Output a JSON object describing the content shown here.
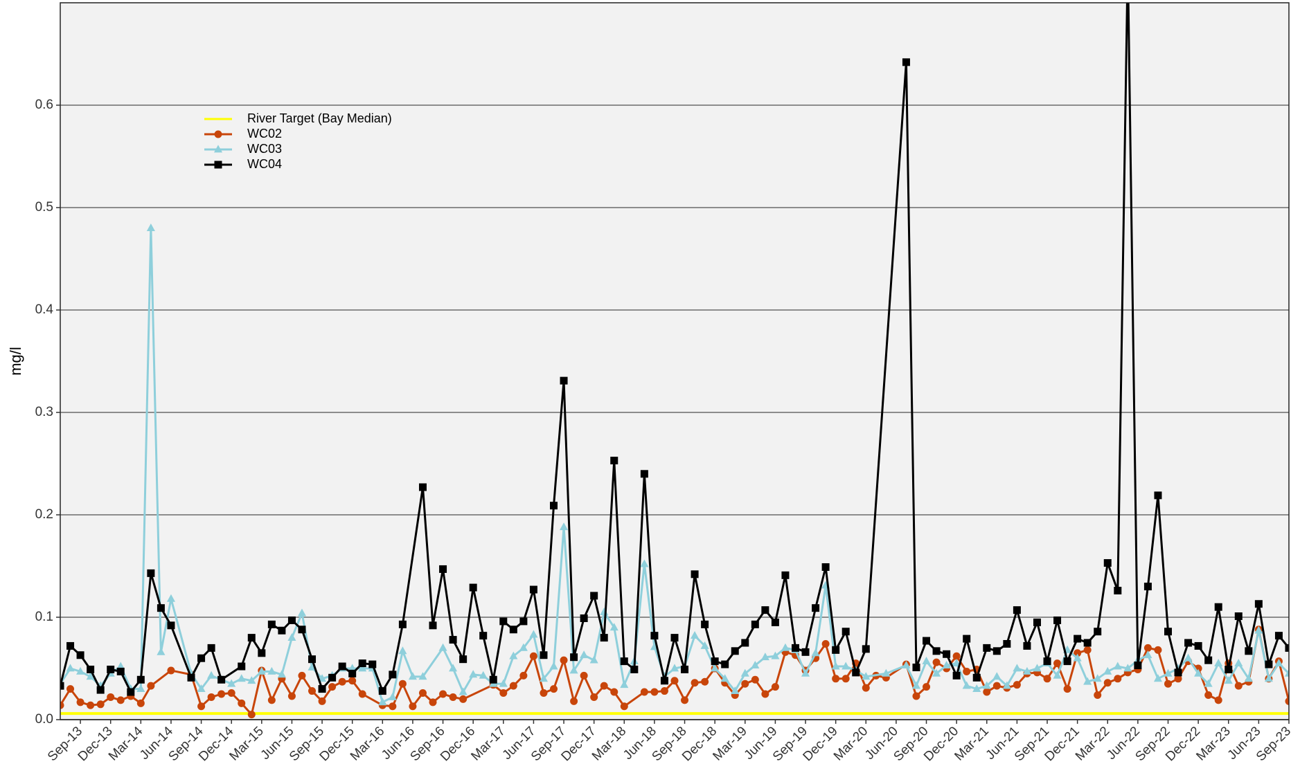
{
  "chart_data": {
    "type": "line",
    "ylabel": "mg/l",
    "xlim": [
      "2013-07",
      "2023-09"
    ],
    "ylim": [
      0,
      0.7
    ],
    "yticks": [
      {
        "value": 0,
        "label": "0.0"
      },
      0.1,
      0.2,
      0.3,
      0.4,
      0.5,
      0.6
    ],
    "grid": true,
    "legend": "upper left",
    "xticks": [
      {
        "value": "2013-09",
        "label": "Sep-13"
      },
      {
        "value": "2013-12",
        "label": "Dec-13"
      },
      {
        "value": "2014-03",
        "label": "Mar-14"
      },
      {
        "value": "2014-06",
        "label": "Jun-14"
      },
      {
        "value": "2014-09",
        "label": "Sep-14"
      },
      {
        "value": "2014-12",
        "label": "Dec-14"
      },
      {
        "value": "2015-03",
        "label": "Mar-15"
      },
      {
        "value": "2015-06",
        "label": "Jun-15"
      },
      {
        "value": "2015-09",
        "label": "Sep-15"
      },
      {
        "value": "2015-12",
        "label": "Dec-15"
      },
      {
        "value": "2016-03",
        "label": "Mar-16"
      },
      {
        "value": "2016-06",
        "label": "Jun-16"
      },
      {
        "value": "2016-09",
        "label": "Sep-16"
      },
      {
        "value": "2016-12",
        "label": "Dec-16"
      },
      {
        "value": "2017-03",
        "label": "Mar-17"
      },
      {
        "value": "2017-06",
        "label": "Jun-17"
      },
      {
        "value": "2017-09",
        "label": "Sep-17"
      },
      {
        "value": "2017-12",
        "label": "Dec-17"
      },
      {
        "value": "2018-03",
        "label": "Mar-18"
      },
      {
        "value": "2018-06",
        "label": "Jun-18"
      },
      {
        "value": "2018-09",
        "label": "Sep-18"
      },
      {
        "value": "2018-12",
        "label": "Dec-18"
      },
      {
        "value": "2019-03",
        "label": "Mar-19"
      },
      {
        "value": "2019-06",
        "label": "Jun-19"
      },
      {
        "value": "2019-09",
        "label": "Sep-19"
      },
      {
        "value": "2019-12",
        "label": "Dec-19"
      },
      {
        "value": "2020-03",
        "label": "Mar-20"
      },
      {
        "value": "2020-06",
        "label": "Jun-20"
      },
      {
        "value": "2020-09",
        "label": "Sep-20"
      },
      {
        "value": "2020-12",
        "label": "Dec-20"
      },
      {
        "value": "2021-03",
        "label": "Mar-21"
      },
      {
        "value": "2021-06",
        "label": "Jun-21"
      },
      {
        "value": "2021-09",
        "label": "Sep-21"
      },
      {
        "value": "2021-12",
        "label": "Dec-21"
      },
      {
        "value": "2022-03",
        "label": "Mar-22"
      },
      {
        "value": "2022-06",
        "label": "Jun-22"
      },
      {
        "value": "2022-09",
        "label": "Sep-22"
      },
      {
        "value": "2022-12",
        "label": "Dec-22"
      },
      {
        "value": "2023-03",
        "label": "Mar-23"
      },
      {
        "value": "2023-06",
        "label": "Jun-23"
      },
      {
        "value": "2023-09",
        "label": "Sep-23"
      }
    ],
    "target": {
      "name": "River Target (Bay Median)",
      "color": "#ffff00",
      "value": 0.006
    },
    "series": [
      {
        "name": "WC02",
        "color": "#c8450a",
        "marker": "circle",
        "x": [
          "2013-07",
          "2013-08",
          "2013-09",
          "2013-10",
          "2013-11",
          "2013-12",
          "2014-01",
          "2014-02",
          "2014-03",
          "2014-04",
          "2014-06",
          "2014-08",
          "2014-09",
          "2014-10",
          "2014-11",
          "2014-12",
          "2015-01",
          "2015-02",
          "2015-03",
          "2015-04",
          "2015-05",
          "2015-06",
          "2015-07",
          "2015-08",
          "2015-09",
          "2015-10",
          "2015-11",
          "2015-12",
          "2016-01",
          "2016-03",
          "2016-04",
          "2016-05",
          "2016-06",
          "2016-07",
          "2016-08",
          "2016-09",
          "2016-10",
          "2016-11",
          "2017-02",
          "2017-03",
          "2017-04",
          "2017-05",
          "2017-06",
          "2017-07",
          "2017-08",
          "2017-09",
          "2017-10",
          "2017-11",
          "2017-12",
          "2018-01",
          "2018-02",
          "2018-03",
          "2018-05",
          "2018-06",
          "2018-07",
          "2018-08",
          "2018-09",
          "2018-10",
          "2018-11",
          "2018-12",
          "2019-01",
          "2019-02",
          "2019-03",
          "2019-04",
          "2019-05",
          "2019-06",
          "2019-07",
          "2019-08",
          "2019-09",
          "2019-10",
          "2019-11",
          "2019-12",
          "2020-01",
          "2020-02",
          "2020-03",
          "2020-04",
          "2020-05",
          "2020-07",
          "2020-08",
          "2020-09",
          "2020-10",
          "2020-11",
          "2020-12",
          "2021-01",
          "2021-02",
          "2021-03",
          "2021-04",
          "2021-05",
          "2021-06",
          "2021-07",
          "2021-08",
          "2021-09",
          "2021-10",
          "2021-11",
          "2021-12",
          "2022-01",
          "2022-02",
          "2022-03",
          "2022-04",
          "2022-05",
          "2022-06",
          "2022-07",
          "2022-08",
          "2022-09",
          "2022-10",
          "2022-11",
          "2022-12",
          "2023-01",
          "2023-02",
          "2023-03",
          "2023-04",
          "2023-05",
          "2023-06",
          "2023-07",
          "2023-08",
          "2023-09"
        ],
        "values": [
          0.014,
          0.03,
          0.017,
          0.014,
          0.015,
          0.022,
          0.019,
          0.023,
          0.016,
          0.033,
          0.048,
          0.044,
          0.013,
          0.022,
          0.025,
          0.026,
          0.016,
          0.005,
          0.048,
          0.019,
          0.04,
          0.023,
          0.043,
          0.028,
          0.018,
          0.032,
          0.037,
          0.038,
          0.025,
          0.014,
          0.013,
          0.035,
          0.013,
          0.026,
          0.017,
          0.025,
          0.022,
          0.02,
          0.034,
          0.026,
          0.033,
          0.043,
          0.062,
          0.026,
          0.03,
          0.058,
          0.018,
          0.043,
          0.022,
          0.033,
          0.027,
          0.013,
          0.027,
          0.027,
          0.028,
          0.038,
          0.019,
          0.036,
          0.037,
          0.05,
          0.036,
          0.024,
          0.035,
          0.039,
          0.025,
          0.032,
          0.066,
          0.063,
          0.048,
          0.06,
          0.074,
          0.04,
          0.04,
          0.055,
          0.031,
          0.043,
          0.041,
          0.054,
          0.023,
          0.032,
          0.056,
          0.05,
          0.062,
          0.047,
          0.049,
          0.027,
          0.033,
          0.031,
          0.034,
          0.045,
          0.046,
          0.04,
          0.055,
          0.03,
          0.065,
          0.068,
          0.024,
          0.036,
          0.04,
          0.046,
          0.049,
          0.07,
          0.068,
          0.035,
          0.04,
          0.057,
          0.05,
          0.024,
          0.019,
          0.055,
          0.033,
          0.037,
          0.088,
          0.04,
          0.057,
          0.018
        ]
      },
      {
        "name": "WC03",
        "color": "#8ecfdb",
        "marker": "triangle",
        "x": [
          "2013-07",
          "2013-08",
          "2013-09",
          "2013-10",
          "2013-11",
          "2013-12",
          "2014-01",
          "2014-02",
          "2014-03",
          "2014-04",
          "2014-05",
          "2014-06",
          "2014-08",
          "2014-09",
          "2014-10",
          "2014-11",
          "2014-12",
          "2015-01",
          "2015-02",
          "2015-03",
          "2015-04",
          "2015-05",
          "2015-06",
          "2015-07",
          "2015-08",
          "2015-09",
          "2015-10",
          "2015-11",
          "2015-12",
          "2016-01",
          "2016-02",
          "2016-03",
          "2016-04",
          "2016-05",
          "2016-06",
          "2016-07",
          "2016-09",
          "2016-10",
          "2016-11",
          "2016-12",
          "2017-01",
          "2017-02",
          "2017-03",
          "2017-04",
          "2017-05",
          "2017-06",
          "2017-07",
          "2017-08",
          "2017-09",
          "2017-10",
          "2017-11",
          "2017-12",
          "2018-01",
          "2018-02",
          "2018-03",
          "2018-04",
          "2018-05",
          "2018-06",
          "2018-07",
          "2018-08",
          "2018-09",
          "2018-10",
          "2018-11",
          "2018-12",
          "2019-01",
          "2019-02",
          "2019-03",
          "2019-04",
          "2019-05",
          "2019-06",
          "2019-07",
          "2019-08",
          "2019-09",
          "2019-10",
          "2019-11",
          "2019-12",
          "2020-01",
          "2020-02",
          "2020-03",
          "2020-05",
          "2020-07",
          "2020-08",
          "2020-09",
          "2020-10",
          "2020-11",
          "2020-12",
          "2021-01",
          "2021-02",
          "2021-03",
          "2021-04",
          "2021-05",
          "2021-06",
          "2021-07",
          "2021-08",
          "2021-09",
          "2021-10",
          "2021-11",
          "2021-12",
          "2022-01",
          "2022-02",
          "2022-03",
          "2022-04",
          "2022-05",
          "2022-06",
          "2022-07",
          "2022-08",
          "2022-09",
          "2022-10",
          "2022-11",
          "2022-12",
          "2023-01",
          "2023-02",
          "2023-03",
          "2023-04",
          "2023-05",
          "2023-06",
          "2023-07",
          "2023-08",
          "2023-09"
        ],
        "values": [
          0.035,
          0.05,
          0.047,
          0.042,
          0.033,
          0.045,
          0.052,
          0.03,
          0.03,
          0.48,
          0.066,
          0.118,
          0.045,
          0.03,
          0.043,
          0.039,
          0.035,
          0.04,
          0.038,
          0.047,
          0.047,
          0.044,
          0.08,
          0.104,
          0.051,
          0.04,
          0.043,
          0.05,
          0.05,
          0.05,
          0.05,
          0.017,
          0.022,
          0.067,
          0.042,
          0.042,
          0.07,
          0.05,
          0.027,
          0.044,
          0.043,
          0.035,
          0.035,
          0.062,
          0.07,
          0.083,
          0.04,
          0.052,
          0.188,
          0.048,
          0.063,
          0.058,
          0.105,
          0.09,
          0.034,
          0.057,
          0.152,
          0.071,
          0.042,
          0.05,
          0.052,
          0.082,
          0.072,
          0.05,
          0.04,
          0.028,
          0.045,
          0.053,
          0.061,
          0.062,
          0.07,
          0.068,
          0.045,
          0.065,
          0.131,
          0.052,
          0.052,
          0.048,
          0.042,
          0.045,
          0.053,
          0.033,
          0.057,
          0.045,
          0.053,
          0.055,
          0.033,
          0.03,
          0.033,
          0.042,
          0.033,
          0.05,
          0.047,
          0.05,
          0.055,
          0.043,
          0.068,
          0.06,
          0.037,
          0.04,
          0.047,
          0.052,
          0.05,
          0.058,
          0.063,
          0.04,
          0.045,
          0.05,
          0.06,
          0.045,
          0.035,
          0.055,
          0.038,
          0.055,
          0.04,
          0.087,
          0.04,
          0.055,
          0.045
        ]
      },
      {
        "name": "WC04",
        "color": "#000000",
        "marker": "square",
        "x": [
          "2013-07",
          "2013-08",
          "2013-09",
          "2013-10",
          "2013-11",
          "2013-12",
          "2014-01",
          "2014-02",
          "2014-03",
          "2014-04",
          "2014-05",
          "2014-06",
          "2014-08",
          "2014-09",
          "2014-10",
          "2014-11",
          "2015-01",
          "2015-02",
          "2015-03",
          "2015-04",
          "2015-05",
          "2015-06",
          "2015-07",
          "2015-08",
          "2015-09",
          "2015-10",
          "2015-11",
          "2015-12",
          "2016-01",
          "2016-02",
          "2016-03",
          "2016-04",
          "2016-05",
          "2016-07",
          "2016-08",
          "2016-09",
          "2016-10",
          "2016-11",
          "2016-12",
          "2017-01",
          "2017-02",
          "2017-03",
          "2017-04",
          "2017-05",
          "2017-06",
          "2017-07",
          "2017-08",
          "2017-09",
          "2017-10",
          "2017-11",
          "2017-12",
          "2018-01",
          "2018-02",
          "2018-03",
          "2018-04",
          "2018-05",
          "2018-06",
          "2018-07",
          "2018-08",
          "2018-09",
          "2018-10",
          "2018-11",
          "2018-12",
          "2019-01",
          "2019-02",
          "2019-03",
          "2019-04",
          "2019-05",
          "2019-06",
          "2019-07",
          "2019-08",
          "2019-09",
          "2019-10",
          "2019-11",
          "2019-12",
          "2020-01",
          "2020-02",
          "2020-03",
          "2020-07",
          "2020-08",
          "2020-09",
          "2020-10",
          "2020-11",
          "2020-12",
          "2021-01",
          "2021-02",
          "2021-03",
          "2021-04",
          "2021-05",
          "2021-06",
          "2021-07",
          "2021-08",
          "2021-09",
          "2021-10",
          "2021-11",
          "2021-12",
          "2022-01",
          "2022-02",
          "2022-03",
          "2022-04",
          "2022-05",
          "2022-06",
          "2022-07",
          "2022-08",
          "2022-09",
          "2022-10",
          "2022-11",
          "2022-12",
          "2023-01",
          "2023-02",
          "2023-03",
          "2023-04",
          "2023-05",
          "2023-06",
          "2023-07",
          "2023-08",
          "2023-09"
        ],
        "values": [
          0.033,
          0.072,
          0.063,
          0.049,
          0.029,
          0.049,
          0.047,
          0.027,
          0.039,
          0.143,
          0.109,
          0.092,
          0.041,
          0.06,
          0.07,
          0.039,
          0.052,
          0.08,
          0.065,
          0.093,
          0.087,
          0.097,
          0.088,
          0.059,
          0.03,
          0.041,
          0.052,
          0.045,
          0.055,
          0.054,
          0.028,
          0.044,
          0.093,
          0.227,
          0.092,
          0.147,
          0.078,
          0.059,
          0.129,
          0.082,
          0.039,
          0.096,
          0.088,
          0.096,
          0.127,
          0.063,
          0.209,
          0.331,
          0.061,
          0.099,
          0.121,
          0.08,
          0.253,
          0.057,
          0.049,
          0.24,
          0.082,
          0.038,
          0.08,
          0.049,
          0.142,
          0.093,
          0.057,
          0.054,
          0.067,
          0.075,
          0.093,
          0.107,
          0.095,
          0.141,
          0.07,
          0.066,
          0.109,
          0.149,
          0.068,
          0.086,
          0.046,
          0.069,
          0.642,
          0.051,
          0.077,
          0.067,
          0.064,
          0.043,
          0.079,
          0.041,
          0.07,
          0.067,
          0.074,
          0.107,
          0.072,
          0.095,
          0.057,
          0.097,
          0.057,
          0.079,
          0.075,
          0.086,
          0.153,
          0.126,
          0.74,
          0.053,
          0.13,
          0.219,
          0.086,
          0.046,
          0.075,
          0.072,
          0.058,
          0.11,
          0.049,
          0.101,
          0.067,
          0.113,
          0.054,
          0.082,
          0.07
        ]
      }
    ]
  }
}
